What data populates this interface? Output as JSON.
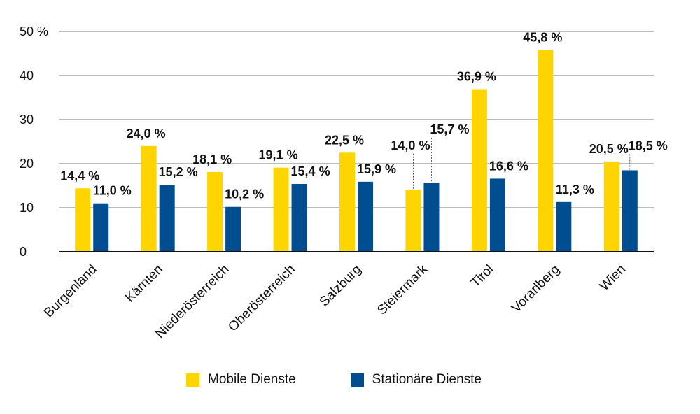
{
  "chart_data": {
    "type": "bar",
    "categories": [
      "Burgenland",
      "Kärnten",
      "Niederösterreich",
      "Oberösterreich",
      "Salzburg",
      "Steiermark",
      "Tirol",
      "Vorarlberg",
      "Wien"
    ],
    "series": [
      {
        "name": "Mobile Dienste",
        "color": "#ffd500",
        "values": [
          14.4,
          24.0,
          18.1,
          19.1,
          22.5,
          14.0,
          36.9,
          45.8,
          20.5
        ],
        "labels": [
          "14,4 %",
          "24,0 %",
          "18,1 %",
          "19,1 %",
          "22,5 %",
          "14,0 %",
          "36,9 %",
          "45,8 %",
          "20,5 %"
        ]
      },
      {
        "name": "Stationäre Dienste",
        "color": "#004e8f",
        "values": [
          11.0,
          15.2,
          10.2,
          15.4,
          15.9,
          15.7,
          16.6,
          11.3,
          18.5
        ],
        "labels": [
          "11,0 %",
          "15,2 %",
          "10,2 %",
          "15,4 %",
          "15,9 %",
          "15,7 %",
          "16,6 %",
          "11,3 %",
          "18,5 %"
        ]
      }
    ],
    "ylim": [
      0,
      50
    ],
    "yticks": [
      0,
      10,
      20,
      30,
      40,
      50
    ],
    "ytick_labels": [
      "0",
      "10",
      "20",
      "30",
      "40",
      "50 %"
    ],
    "grid": true,
    "legend_position": "bottom"
  },
  "legend": {
    "mobile": {
      "label": "Mobile Dienste",
      "color": "#ffd500"
    },
    "stationary": {
      "label": "Stationäre Dienste",
      "color": "#004e8f"
    }
  }
}
